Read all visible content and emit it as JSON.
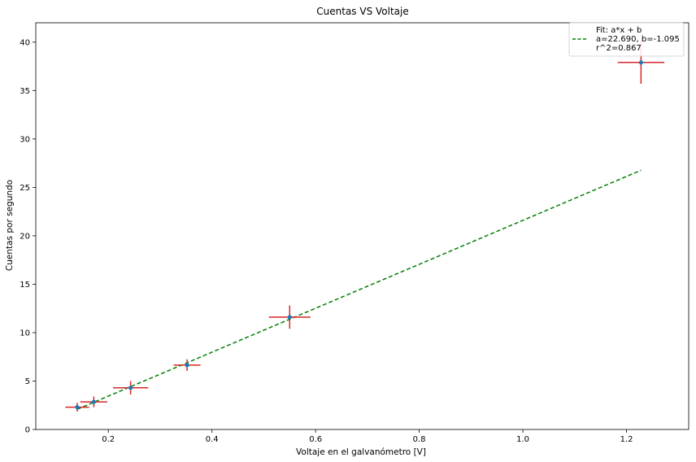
{
  "chart_data": {
    "type": "scatter",
    "title": "Cuentas VS Voltaje",
    "xlabel": "Voltaje en el galvanómetro [V]",
    "ylabel": "Cuentas por segundo",
    "xlim": [
      0.06,
      1.32
    ],
    "ylim": [
      0,
      42
    ],
    "xticks": [
      0.2,
      0.4,
      0.6,
      0.8,
      1.0,
      1.2
    ],
    "xtick_labels": [
      "0.2",
      "0.4",
      "0.6",
      "0.8",
      "1.0",
      "1.2"
    ],
    "yticks": [
      0,
      5,
      10,
      15,
      20,
      25,
      30,
      35,
      40
    ],
    "ytick_labels": [
      "0",
      "5",
      "10",
      "15",
      "20",
      "25",
      "30",
      "35",
      "40"
    ],
    "grid": false,
    "legend_position": "top-right",
    "points": {
      "x": [
        0.14,
        0.172,
        0.243,
        0.352,
        0.55,
        1.228
      ],
      "y": [
        2.3,
        2.85,
        4.3,
        6.65,
        11.6,
        37.9
      ],
      "xerr": [
        0.023,
        0.026,
        0.034,
        0.026,
        0.04,
        0.045
      ],
      "yerr": [
        0.45,
        0.55,
        0.7,
        0.6,
        1.2,
        2.2
      ],
      "marker_color": "#1f77b4",
      "errorbar_color": "#d62728"
    },
    "fit": {
      "label_lines": [
        "Fit: a*x + b",
        "a=22.690, b=-1.095",
        "r^2=0.867"
      ],
      "a": 22.69,
      "b": -1.095,
      "x_range": [
        0.14,
        1.228
      ],
      "color": "#008000",
      "style": "dashed"
    }
  }
}
